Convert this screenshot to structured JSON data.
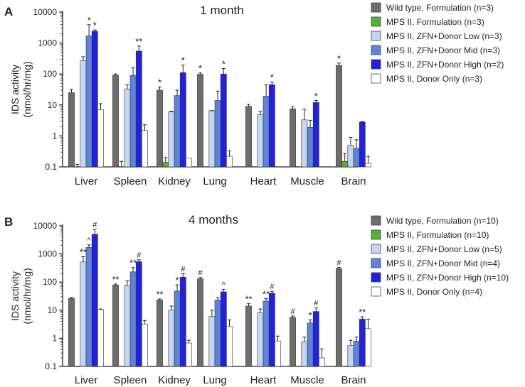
{
  "colors": {
    "wt": "#6d6d6d",
    "form": "#55b033",
    "low": "#c4d6f3",
    "mid": "#5e83d9",
    "high": "#2222dd",
    "donor": "#ffffff"
  },
  "chart_data": [
    {
      "panel": "A",
      "type": "bar",
      "title": "1 month",
      "ylabel_line1": "IDS activity",
      "ylabel_line2": "(nmol/hr/mg)",
      "yscale": "log",
      "ylim": [
        0.1,
        10000
      ],
      "ytick_labels": [
        "0.1",
        "1",
        "10",
        "100",
        "1000",
        "10000"
      ],
      "categories": [
        "Liver",
        "Spleen",
        "Kidney",
        "Lung",
        "Heart",
        "Muscle",
        "Brain"
      ],
      "series": [
        {
          "name": "Wild type, Formulation (n=3)",
          "color_key": "wt",
          "values": [
            25,
            92,
            30,
            98,
            9,
            7.5,
            190
          ],
          "errors": [
            32,
            100,
            38,
            108,
            10.5,
            8.8,
            225
          ]
        },
        {
          "name": "MPS II, Formulation (n=3)",
          "color_key": "form",
          "values": [
            0.1,
            0.1,
            0.14,
            0.1,
            0.1,
            0.1,
            0.15
          ],
          "errors": [
            0.12,
            0.15,
            0.2,
            0.1,
            0.1,
            0.1,
            0.27
          ]
        },
        {
          "name": "MPS II, ZFN+Donor Low (n=3)",
          "color_key": "low",
          "values": [
            270,
            33,
            6,
            6.5,
            4.8,
            3.3,
            0.5
          ],
          "errors": [
            360,
            45,
            6.3,
            6.6,
            6.2,
            7.2,
            0.9
          ]
        },
        {
          "name": "MPS II, ZFN+Donor Mid (n=3)",
          "color_key": "mid",
          "values": [
            1700,
            90,
            20,
            14,
            19,
            1.9,
            0.4
          ],
          "errors": [
            3900,
            160,
            30,
            28,
            45,
            3.2,
            0.75
          ]
        },
        {
          "name": "MPS II, ZFN+Donor High (n=2)",
          "color_key": "high",
          "values": [
            2400,
            550,
            110,
            100,
            45,
            12,
            2.8
          ],
          "errors": [
            2650,
            800,
            195,
            150,
            55,
            14,
            2.9
          ]
        },
        {
          "name": "MPS II, Donor Only (n=3)",
          "color_key": "donor",
          "values": [
            7,
            1.5,
            0.19,
            0.22,
            0.1,
            0.1,
            0.13
          ],
          "errors": [
            11,
            2.3,
            0.19,
            0.33,
            0.1,
            0.1,
            0.22
          ]
        }
      ],
      "annotations": [
        {
          "category": 0,
          "series": 3,
          "text": "*"
        },
        {
          "category": 0,
          "series": 4,
          "text": "*"
        },
        {
          "category": 1,
          "series": 4,
          "text": "**"
        },
        {
          "category": 2,
          "series": 0,
          "text": "*"
        },
        {
          "category": 2,
          "series": 4,
          "text": "*"
        },
        {
          "category": 3,
          "series": 0,
          "text": "*"
        },
        {
          "category": 3,
          "series": 4,
          "text": "*"
        },
        {
          "category": 4,
          "series": 4,
          "text": "*"
        },
        {
          "category": 5,
          "series": 4,
          "text": "*"
        },
        {
          "category": 6,
          "series": 0,
          "text": "*"
        }
      ]
    },
    {
      "panel": "B",
      "type": "bar",
      "title": "4 months",
      "ylabel_line1": "IDS activity",
      "ylabel_line2": "(nmol/hr/mg)",
      "yscale": "log",
      "ylim": [
        0.1,
        10000
      ],
      "ytick_labels": [
        "0.1",
        "1",
        "10",
        "100",
        "1000",
        "10000"
      ],
      "categories": [
        "Liver",
        "Spleen",
        "Kidney",
        "Lung",
        "Heart",
        "Muscle",
        "Brain"
      ],
      "series": [
        {
          "name": "Wild type, Formulation (n=10)",
          "color_key": "wt",
          "values": [
            26,
            78,
            23,
            130,
            14,
            5.5,
            300
          ],
          "errors": [
            28,
            85,
            25,
            145,
            17,
            6.2,
            330
          ]
        },
        {
          "name": "MPS II, Formulation (n=10)",
          "color_key": "form",
          "values": [
            0.1,
            0.1,
            0.1,
            0.1,
            0.1,
            0.1,
            0.1
          ],
          "errors": [
            0.1,
            0.1,
            0.1,
            0.1,
            0.1,
            0.1,
            0.1
          ]
        },
        {
          "name": "MPS II, ZFN+Donor Low (n=5)",
          "color_key": "low",
          "values": [
            520,
            75,
            10,
            6,
            8,
            0.75,
            0.55
          ],
          "errors": [
            800,
            110,
            14,
            10,
            11,
            1.1,
            0.85
          ]
        },
        {
          "name": "MPS II, ZFN+Donor Mid (n=4)",
          "color_key": "mid",
          "values": [
            1700,
            230,
            48,
            23,
            21,
            3.5,
            0.8
          ],
          "errors": [
            2100,
            330,
            80,
            28,
            26,
            4.5,
            1.1
          ]
        },
        {
          "name": "MPS II, ZFN+Donor High (n=10)",
          "color_key": "high",
          "values": [
            5000,
            530,
            150,
            45,
            40,
            9,
            4.8
          ],
          "errors": [
            7500,
            620,
            200,
            55,
            47,
            12,
            5.8
          ]
        },
        {
          "name": "MPS II, Donor Only (n=4)",
          "color_key": "donor",
          "values": [
            10.5,
            3.2,
            0.68,
            2.6,
            0.8,
            0.2,
            2.2
          ],
          "errors": [
            11,
            4.3,
            0.85,
            4.5,
            1.2,
            0.42,
            4.8
          ]
        }
      ],
      "annotations": [
        {
          "category": 0,
          "series": 2,
          "text": "**"
        },
        {
          "category": 0,
          "series": 3,
          "text": "^"
        },
        {
          "category": 0,
          "series": 4,
          "text": "#"
        },
        {
          "category": 1,
          "series": 0,
          "text": "**"
        },
        {
          "category": 1,
          "series": 3,
          "text": "**"
        },
        {
          "category": 1,
          "series": 4,
          "text": "#"
        },
        {
          "category": 2,
          "series": 0,
          "text": "**"
        },
        {
          "category": 2,
          "series": 3,
          "text": "*"
        },
        {
          "category": 2,
          "series": 4,
          "text": "#"
        },
        {
          "category": 3,
          "series": 0,
          "text": "#"
        },
        {
          "category": 3,
          "series": 4,
          "text": "^"
        },
        {
          "category": 4,
          "series": 0,
          "text": "**"
        },
        {
          "category": 4,
          "series": 3,
          "text": "**"
        },
        {
          "category": 4,
          "series": 4,
          "text": "#"
        },
        {
          "category": 5,
          "series": 0,
          "text": "#"
        },
        {
          "category": 5,
          "series": 3,
          "text": "*"
        },
        {
          "category": 5,
          "series": 4,
          "text": "#"
        },
        {
          "category": 6,
          "series": 0,
          "text": "#"
        },
        {
          "category": 6,
          "series": 4,
          "text": "**"
        }
      ]
    }
  ]
}
